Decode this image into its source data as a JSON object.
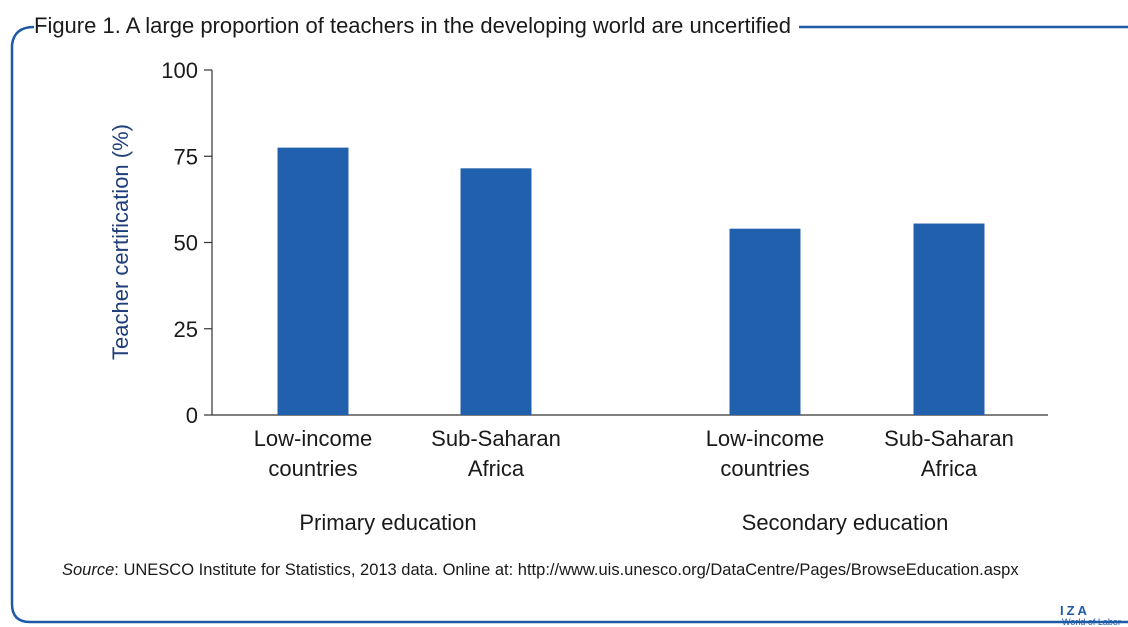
{
  "figure": {
    "title": "Figure 1. A large proportion of teachers in the developing world are uncertified",
    "source_label": "Source",
    "source_text": ": UNESCO Institute for Statistics, 2013 data. Online at: http://www.uis.unesco.org/DataCentre/Pages/BrowseEducation.aspx",
    "logo_text": "IZA",
    "logo_subtext": "World of Labor"
  },
  "colors": {
    "bar": "#2160ad",
    "frame": "#1f5aa6",
    "axis_label": "#1f3e7a"
  },
  "chart_data": {
    "type": "bar",
    "title": "Figure 1. A large proportion of teachers in the developing world are uncertified",
    "xlabel": "",
    "ylabel": "Teacher certification (%)",
    "ylim": [
      0,
      100
    ],
    "yticks": [
      0,
      25,
      50,
      75,
      100
    ],
    "grid": false,
    "groups": [
      {
        "name": "Primary education",
        "categories": [
          {
            "label": [
              "Low-income",
              "countries"
            ],
            "value": 77.5
          },
          {
            "label": [
              "Sub-Saharan",
              "Africa"
            ],
            "value": 71.5
          }
        ]
      },
      {
        "name": "Secondary education",
        "categories": [
          {
            "label": [
              "Low-income",
              "countries"
            ],
            "value": 54
          },
          {
            "label": [
              "Sub-Saharan",
              "Africa"
            ],
            "value": 55.5
          }
        ]
      }
    ]
  }
}
